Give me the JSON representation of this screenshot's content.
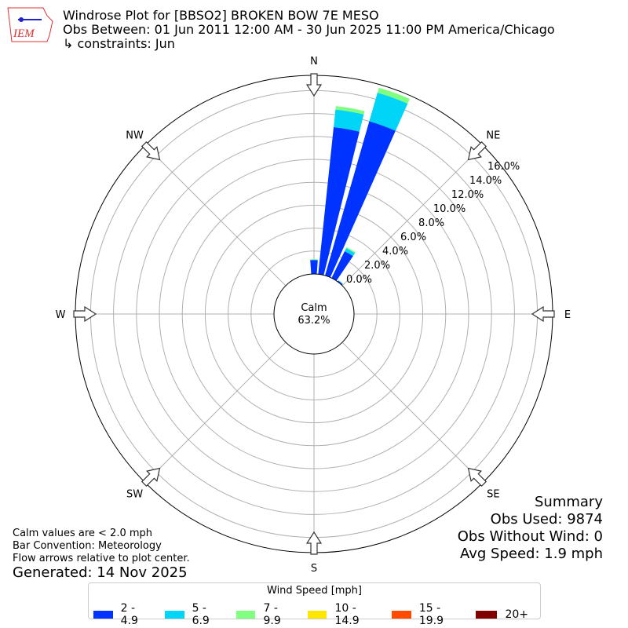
{
  "header": {
    "title": "Windrose Plot for [BBSO2] BROKEN BOW 7E MESO",
    "subtitle": "Obs Between: 01 Jun 2011 12:00 AM - 30 Jun 2025 11:00 PM America/Chicago",
    "constraints": "↳ constraints: Jun",
    "logo_text": "IEM"
  },
  "chart_data": {
    "type": "windrose",
    "directions_deg": [
      0,
      10,
      20,
      30,
      40
    ],
    "speed_bins": [
      "2 - 4.9",
      "5 - 6.9",
      "7 - 9.9",
      "10 - 14.9",
      "15 - 19.9",
      "20+"
    ],
    "colors": [
      "#0033ff",
      "#00d4f7",
      "#80ff80",
      "#ffe600",
      "#ff4a00",
      "#800000"
    ],
    "series": [
      {
        "name": "2 - 4.9",
        "values": [
          1.2,
          12.9,
          14.0,
          2.6,
          0.1
        ]
      },
      {
        "name": "5 - 6.9",
        "values": [
          0.05,
          1.55,
          2.6,
          0.3,
          0.05
        ]
      },
      {
        "name": "7 - 9.9",
        "values": [
          0.05,
          0.3,
          0.45,
          0.1,
          0.0
        ]
      },
      {
        "name": "10 - 14.9",
        "values": [
          0,
          0,
          0,
          0,
          0
        ]
      },
      {
        "name": "15 - 19.9",
        "values": [
          0,
          0,
          0,
          0,
          0
        ]
      },
      {
        "name": "20+",
        "values": [
          0,
          0,
          0,
          0,
          0
        ]
      }
    ],
    "radial_ticks": [
      "0.0%",
      "2.0%",
      "4.0%",
      "6.0%",
      "8.0%",
      "10.0%",
      "12.0%",
      "14.0%",
      "16.0%"
    ],
    "radial_tick_values": [
      0,
      2,
      4,
      6,
      8,
      10,
      12,
      14,
      16
    ],
    "compass_labels": [
      "N",
      "NE",
      "E",
      "SE",
      "S",
      "SW",
      "W",
      "NW"
    ],
    "calm_label": "Calm",
    "calm_value": "63.2%",
    "legend_title": "Wind Speed [mph]",
    "legend_placement": "bottom-center"
  },
  "summary": {
    "title": "Summary",
    "obs_used": "Obs Used: 9874",
    "obs_without_wind": "Obs Without Wind: 0",
    "avg_speed": "Avg Speed: 1.9 mph"
  },
  "notes": {
    "calm": "Calm values are < 2.0 mph",
    "bar": "Bar Convention: Meteorology",
    "flow": "Flow arrows relative to plot center.",
    "generated": "Generated: 14 Nov 2025"
  }
}
